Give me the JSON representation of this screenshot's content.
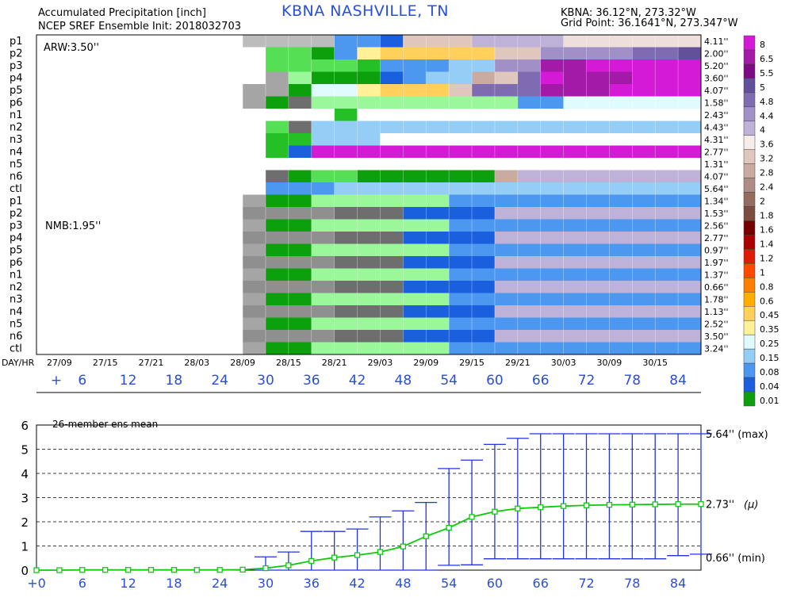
{
  "header": {
    "title": "Accumulated Precipitation [inch]",
    "subtitle": "NCEP SREF Ensemble Init: 2018032703",
    "station": "KBNA NASHVILLE, TN",
    "station_coords": "KBNA: 36.12°N, 273.32°W",
    "grid_point": "Grid Point: 36.1641°N, 273.347°W"
  },
  "colors": {
    "scale": [
      "#ffffff",
      "#d2d2d2",
      "#bcbcbc",
      "#a5a5a5",
      "#8f8f8f",
      "#6e6e6e",
      "#0ca10c",
      "#25c025",
      "#55df55",
      "#9af79a",
      "#1a5fdd",
      "#4c98f0",
      "#94cef7",
      "#e0fbfd",
      "#fff197",
      "#ffd05a",
      "#ffae00",
      "#ff7e00",
      "#ff4a00",
      "#df1c08",
      "#ab0000",
      "#760000",
      "#5c2c1c",
      "#7d4c40",
      "#956c60",
      "#ae8e84",
      "#c9aba1",
      "#dfc7bd",
      "#efdfda",
      "#f6ece9",
      "#bfb2d9",
      "#a190c8",
      "#7e6bb2",
      "#62509b",
      "#7d0a84",
      "#a319a8",
      "#d41ad7"
    ],
    "line_color": "#2233e0",
    "mean_color": "#11c811",
    "axis_label_color": "#2a4fd6"
  },
  "chart_data": [
    {
      "type": "heatmap",
      "title": "Accumulated Precipitation [inch]",
      "group_labels": [
        "ARW:3.50''",
        "NMB:1.95''"
      ],
      "rows": [
        "p1",
        "p2",
        "p3",
        "p4",
        "p5",
        "p6",
        "n1",
        "n2",
        "n3",
        "n4",
        "n5",
        "n6",
        "ctl",
        "p1",
        "p2",
        "p3",
        "p4",
        "p5",
        "p6",
        "n1",
        "n2",
        "n3",
        "n4",
        "n5",
        "n6",
        "ctl"
      ],
      "totals": [
        "4.11''",
        "2.00''",
        "5.20''",
        "3.60''",
        "4.07''",
        "1.58''",
        "2.43''",
        "4.43''",
        "4.31''",
        "2.77''",
        "1.31''",
        "4.07''",
        "5.64''",
        "1.34''",
        "1.53''",
        "2.56''",
        "2.77''",
        "0.97''",
        "1.97''",
        "1.37''",
        "0.66''",
        "1.78''",
        "1.13''",
        "2.52''",
        "3.50''",
        "3.24''"
      ],
      "x_prefix": "DAY/HR",
      "x_day_labels": [
        "27/09",
        "27/15",
        "27/21",
        "28/03",
        "28/09",
        "28/15",
        "28/21",
        "29/03",
        "29/09",
        "29/15",
        "29/21",
        "30/03",
        "30/09",
        "30/15"
      ],
      "x_hour_labels": [
        "+",
        "6",
        "12",
        "18",
        "24",
        "30",
        "36",
        "42",
        "48",
        "54",
        "60",
        "66",
        "72",
        "78",
        "84"
      ],
      "colorbar_labels": [
        "8",
        "6.5",
        "5.5",
        "5",
        "4.8",
        "4.4",
        "4",
        "3.6",
        "3.2",
        "2.8",
        "2.4",
        "2",
        "1.8",
        "1.6",
        "1.4",
        "1.2",
        "1",
        "0.8",
        "0.6",
        "0.45",
        "0.35",
        "0.25",
        "0.15",
        "0.08",
        "0.04",
        "0.01"
      ],
      "cells": [
        "0000000002222BBARRRUUUUSSSSSSSSSSSSSSS",
        "0000000000886BEFFFFFRRVVVVWWXXXXXXXXXX",
        "000000000088887BBBCCVVZZaaaggggggggggg",
        "000000000039666ABCCQRWaZZZdddddddddddd",
        "000000000336DDEFFFRWWWZZZcccccccccccccc",
        "000000000365999999999BBDDDDDDDDDDDDDDD",
        "00000000000007000000000000000000000000",
        "000000000085CCCCCCCCCCCCCCCCCCCCCCCCCC",
        "000000000077CCC0000000000000000000000C",
        "00000000007Aaaaaaaaaaaaaaaaaaaaaaaaaaa",
        "000000000000000000000000000000000000000",
        "00000000005688666666QUUUUUUUUUUUUUUUUU",
        "0000000000BBBCCCCCCCCCCCCCCCCCCCCCCCCC"
      ],
      "x": [
        3,
        87
      ],
      "xlim": [
        0,
        87
      ]
    },
    {
      "type": "line",
      "title": "26-member ens mean",
      "x": [
        0,
        3,
        6,
        9,
        12,
        15,
        18,
        21,
        24,
        27,
        30,
        33,
        36,
        39,
        42,
        45,
        48,
        51,
        54,
        57,
        60,
        63,
        66,
        69,
        72,
        75,
        78,
        81,
        84,
        87
      ],
      "mean": [
        0.0,
        0.0,
        0.01,
        0.01,
        0.01,
        0.01,
        0.01,
        0.01,
        0.01,
        0.02,
        0.08,
        0.2,
        0.38,
        0.52,
        0.62,
        0.75,
        0.98,
        1.4,
        1.75,
        2.2,
        2.42,
        2.55,
        2.6,
        2.65,
        2.68,
        2.7,
        2.71,
        2.72,
        2.73,
        2.73
      ],
      "max": [
        0.0,
        0.0,
        0.01,
        0.01,
        0.02,
        0.02,
        0.02,
        0.02,
        0.02,
        0.03,
        0.55,
        0.75,
        1.6,
        1.6,
        1.7,
        2.2,
        2.45,
        2.8,
        4.2,
        4.55,
        5.2,
        5.45,
        5.64,
        5.64,
        5.64,
        5.64,
        5.64,
        5.64,
        5.64,
        5.64
      ],
      "min": [
        0.0,
        0.0,
        0.0,
        0.0,
        0.0,
        0.0,
        0.0,
        0.0,
        0.0,
        0.0,
        0.0,
        0.0,
        0.0,
        0.0,
        0.0,
        0.0,
        0.0,
        0.0,
        0.2,
        0.22,
        0.47,
        0.47,
        0.47,
        0.47,
        0.47,
        0.47,
        0.47,
        0.47,
        0.6,
        0.66
      ],
      "ylim": [
        0,
        6
      ],
      "yticks": [
        "0",
        "1",
        "2",
        "3",
        "4",
        "5",
        "6"
      ],
      "xtick_labels": [
        "+0",
        "6",
        "12",
        "18",
        "24",
        "30",
        "36",
        "42",
        "48",
        "54",
        "60",
        "66",
        "72",
        "78",
        "84"
      ],
      "xticks": [
        0,
        6,
        12,
        18,
        24,
        30,
        36,
        42,
        48,
        54,
        60,
        66,
        72,
        78,
        84
      ],
      "annotations": {
        "max": "5.64'' (max)",
        "mean": "2.73'' ",
        "mu": "(μ)",
        "min": "0.66'' (min)"
      },
      "grid": true
    }
  ]
}
